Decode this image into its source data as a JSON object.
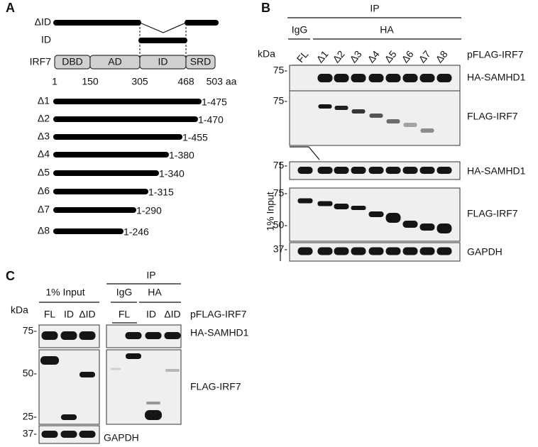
{
  "panel_a": {
    "label": "A",
    "delta_id_label": "ΔID",
    "id_label": "ID",
    "protein": "IRF7",
    "domains": [
      "DBD",
      "AD",
      "ID",
      "SRD"
    ],
    "positions": [
      "1",
      "150",
      "305",
      "468",
      "503 aa"
    ],
    "constructs": [
      {
        "name": "Δ1",
        "range": "1-475"
      },
      {
        "name": "Δ2",
        "range": "1-470"
      },
      {
        "name": "Δ3",
        "range": "1-455"
      },
      {
        "name": "Δ4",
        "range": "1-380"
      },
      {
        "name": "Δ5",
        "range": "1-340"
      },
      {
        "name": "Δ6",
        "range": "1-315"
      },
      {
        "name": "Δ7",
        "range": "1-290"
      },
      {
        "name": "Δ8",
        "range": "1-246"
      }
    ]
  },
  "panel_b": {
    "label": "B",
    "ip": "IP",
    "igg": "IgG",
    "ha": "HA",
    "kda": "kDa",
    "lanes": [
      "FL",
      "Δ1",
      "Δ2",
      "Δ3",
      "Δ4",
      "Δ5",
      "Δ6",
      "Δ7",
      "Δ8"
    ],
    "plasmid": "pFLAG-IRF7",
    "ip_blots": [
      {
        "antibody": "HA-SAMHD1",
        "markers": [
          "75-"
        ]
      },
      {
        "antibody": "FLAG-IRF7",
        "markers": [
          "75-"
        ]
      }
    ],
    "input_label": "1% Input",
    "input_blots": [
      {
        "antibody": "HA-SAMHD1",
        "markers": [
          "75-"
        ]
      },
      {
        "antibody": "FLAG-IRF7",
        "markers": [
          "75-",
          "50-"
        ]
      },
      {
        "antibody": "GAPDH",
        "markers": [
          "37-"
        ]
      }
    ]
  },
  "panel_c": {
    "label": "C",
    "input_label": "1% Input",
    "ip": "IP",
    "igg": "IgG",
    "ha": "HA",
    "kda": "kDa",
    "input_lanes": [
      "FL",
      "ID",
      "ΔID"
    ],
    "ip_lanes": [
      "FL",
      "ID",
      "ΔID"
    ],
    "plasmid": "pFLAG-IRF7",
    "blots": [
      {
        "antibody": "HA-SAMHD1",
        "markers": [
          "75-"
        ]
      },
      {
        "antibody": "FLAG-IRF7",
        "markers": [
          "50-",
          "25-"
        ]
      },
      {
        "antibody": "GAPDH",
        "markers": [
          "37-"
        ]
      }
    ]
  }
}
